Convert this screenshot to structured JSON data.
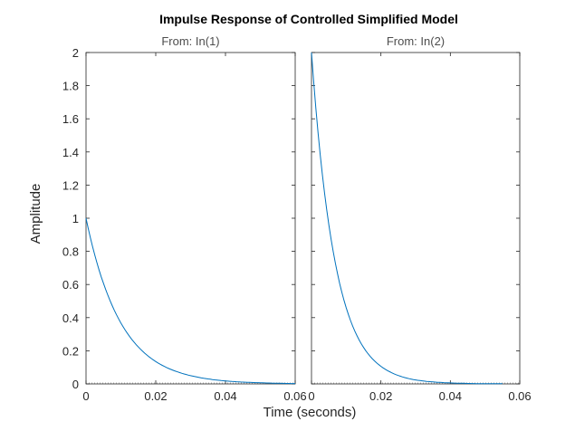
{
  "chart_data": {
    "type": "line",
    "title": "Impulse Response of Controlled Simplified Model",
    "xlabel": "Time (seconds)",
    "ylabel": "Amplitude",
    "ylim": [
      0,
      2
    ],
    "grid": false,
    "yticks": [
      "0",
      "0.2",
      "0.4",
      "0.6",
      "0.8",
      "1",
      "1.2",
      "1.4",
      "1.6",
      "1.8",
      "2"
    ],
    "color": "#0072bd",
    "zero_line_color": "#888888",
    "panels": [
      {
        "name": "From: In(1)",
        "xlim": [
          0,
          0.06
        ],
        "xticks": [
          "0",
          "0.02",
          "0.04",
          "0.06"
        ],
        "x": [
          0,
          0.005,
          0.01,
          0.015,
          0.02,
          0.025,
          0.03,
          0.035,
          0.04,
          0.045,
          0.05,
          0.055,
          0.06
        ],
        "y": [
          1.0,
          0.607,
          0.368,
          0.223,
          0.135,
          0.082,
          0.05,
          0.03,
          0.018,
          0.011,
          0.007,
          0.004,
          0.002
        ]
      },
      {
        "name": "From: In(2)",
        "xlim": [
          0,
          0.06
        ],
        "xticks": [
          "0",
          "0.02",
          "0.04",
          "0.06"
        ],
        "x": [
          0,
          0.005,
          0.01,
          0.015,
          0.02,
          0.025,
          0.03,
          0.035,
          0.04,
          0.045,
          0.05,
          0.055
        ],
        "y": [
          2.0,
          0.959,
          0.46,
          0.22,
          0.106,
          0.051,
          0.024,
          0.012,
          0.006,
          0.003,
          0.001,
          0.001
        ]
      }
    ]
  }
}
